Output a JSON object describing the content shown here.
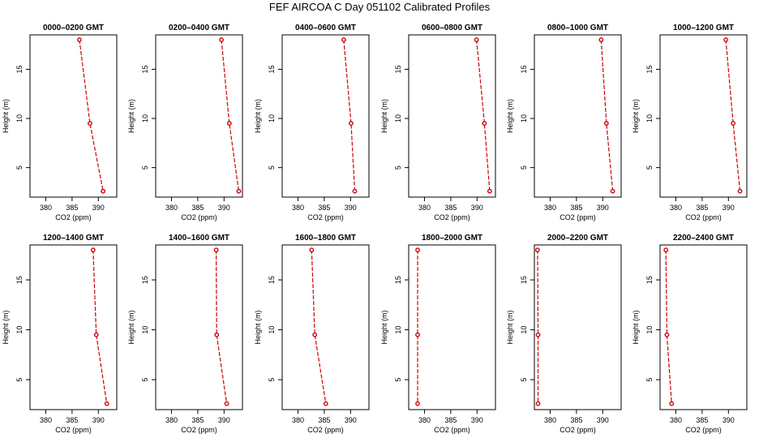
{
  "chart_data": {
    "type": "line",
    "title": "FEF AIRCOA C  Day 051102  Calibrated Profiles",
    "xlabel": "CO2 (ppm)",
    "ylabel": "Height (m)",
    "xlim": [
      377,
      393.5
    ],
    "ylim": [
      2,
      18.5
    ],
    "xticks": [
      380,
      385,
      390
    ],
    "yticks": [
      5,
      10,
      15
    ],
    "heights": [
      18,
      9.5,
      2.6
    ],
    "panels": [
      {
        "title": "0000–0200 GMT",
        "co2": [
          386.4,
          388.4,
          390.9
        ]
      },
      {
        "title": "0200–0400 GMT",
        "co2": [
          389.5,
          391.0,
          392.8
        ]
      },
      {
        "title": "0400–0600 GMT",
        "co2": [
          388.7,
          390.1,
          390.8
        ]
      },
      {
        "title": "0600–0800 GMT",
        "co2": [
          389.9,
          391.4,
          392.4
        ]
      },
      {
        "title": "0800–1000 GMT",
        "co2": [
          389.7,
          390.7,
          391.9
        ]
      },
      {
        "title": "1000–1200 GMT",
        "co2": [
          389.5,
          390.9,
          392.2
        ]
      },
      {
        "title": "1200–1400 GMT",
        "co2": [
          389.0,
          389.6,
          391.6
        ]
      },
      {
        "title": "1400–1600 GMT",
        "co2": [
          388.5,
          388.6,
          390.5
        ]
      },
      {
        "title": "1600–1800 GMT",
        "co2": [
          382.6,
          383.2,
          385.3
        ]
      },
      {
        "title": "1800–2000 GMT",
        "co2": [
          378.7,
          378.7,
          378.7
        ]
      },
      {
        "title": "2000–2200 GMT",
        "co2": [
          377.6,
          377.7,
          377.7
        ]
      },
      {
        "title": "2200–2400 GMT",
        "co2": [
          378.1,
          378.3,
          379.2
        ]
      }
    ]
  }
}
